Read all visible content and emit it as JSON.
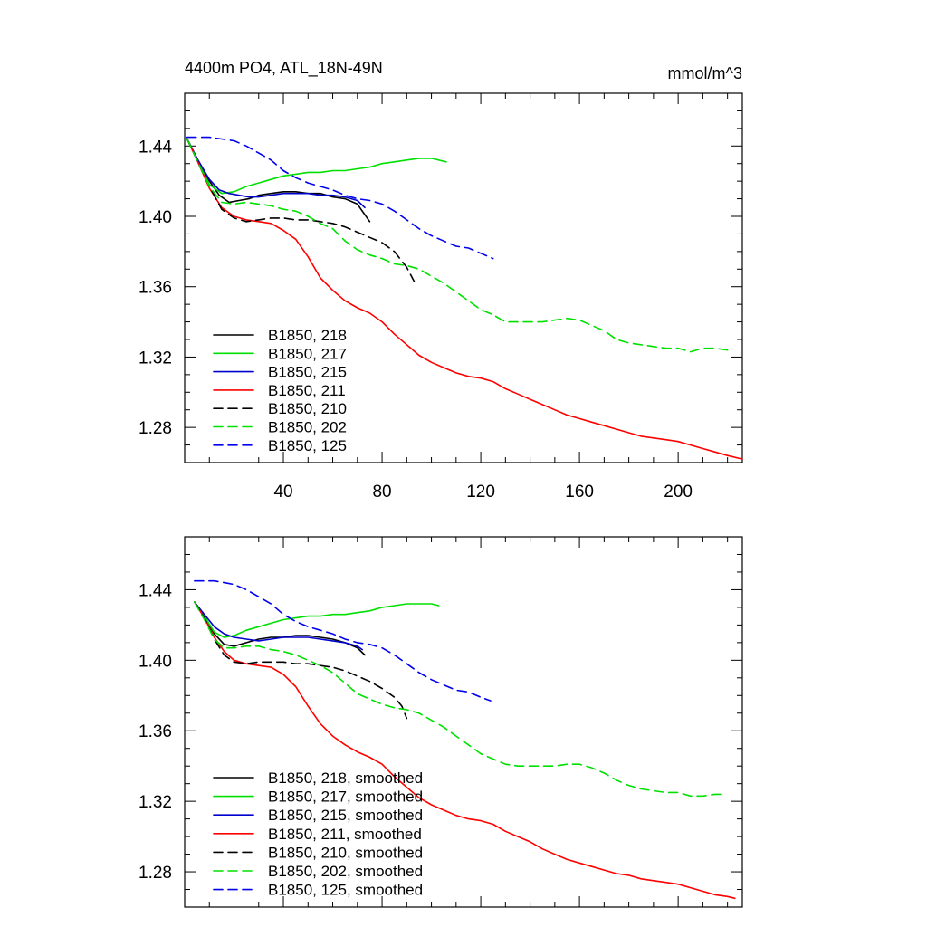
{
  "chart_data": [
    {
      "type": "line",
      "title": "4400m PO4, ATL_18N-49N",
      "units_label": "mmol/m^3",
      "xlim": [
        0,
        226
      ],
      "ylim": [
        1.26,
        1.47
      ],
      "xticks": [
        40,
        80,
        120,
        160,
        200
      ],
      "xtick_labels": [
        "40",
        "80",
        "120",
        "160",
        "200"
      ],
      "yticks": [
        1.28,
        1.32,
        1.36,
        1.4,
        1.44
      ],
      "ytick_labels": [
        "1.28",
        "1.32",
        "1.36",
        "1.40",
        "1.44"
      ],
      "legend_position": "bottom-left",
      "series": [
        {
          "name": "B1850, 218",
          "color": "#000000",
          "dash": "solid",
          "x": [
            1,
            5,
            10,
            14,
            18,
            22,
            26,
            30,
            35,
            40,
            45,
            50,
            55,
            60,
            65,
            70,
            72,
            75
          ],
          "y": [
            1.444,
            1.433,
            1.42,
            1.412,
            1.408,
            1.409,
            1.41,
            1.412,
            1.413,
            1.414,
            1.414,
            1.413,
            1.413,
            1.411,
            1.41,
            1.407,
            1.403,
            1.397
          ]
        },
        {
          "name": "B1850, 217",
          "color": "#00e000",
          "dash": "solid",
          "x": [
            1,
            5,
            10,
            15,
            20,
            25,
            30,
            35,
            40,
            45,
            50,
            55,
            60,
            65,
            70,
            75,
            80,
            85,
            90,
            95,
            100,
            106
          ],
          "y": [
            1.444,
            1.432,
            1.418,
            1.413,
            1.414,
            1.417,
            1.419,
            1.421,
            1.423,
            1.424,
            1.425,
            1.425,
            1.426,
            1.426,
            1.427,
            1.428,
            1.43,
            1.431,
            1.432,
            1.433,
            1.433,
            1.431
          ]
        },
        {
          "name": "B1850, 215",
          "color": "#0000cc",
          "dash": "solid",
          "x": [
            1,
            5,
            10,
            14,
            18,
            22,
            26,
            30,
            35,
            40,
            45,
            50,
            55,
            60,
            65,
            70,
            73
          ],
          "y": [
            1.444,
            1.433,
            1.421,
            1.415,
            1.413,
            1.412,
            1.411,
            1.411,
            1.412,
            1.413,
            1.413,
            1.413,
            1.412,
            1.412,
            1.411,
            1.409,
            1.405
          ]
        },
        {
          "name": "B1850, 211",
          "color": "#ff0000",
          "dash": "solid",
          "x": [
            1,
            5,
            10,
            15,
            20,
            25,
            30,
            35,
            40,
            45,
            50,
            55,
            60,
            65,
            70,
            75,
            80,
            85,
            90,
            95,
            100,
            105,
            110,
            115,
            120,
            125,
            130,
            135,
            140,
            145,
            150,
            155,
            160,
            165,
            170,
            175,
            180,
            185,
            190,
            195,
            200,
            205,
            210,
            215,
            220,
            226
          ],
          "y": [
            1.444,
            1.432,
            1.416,
            1.405,
            1.4,
            1.398,
            1.397,
            1.396,
            1.392,
            1.387,
            1.377,
            1.365,
            1.358,
            1.352,
            1.348,
            1.345,
            1.34,
            1.333,
            1.327,
            1.321,
            1.317,
            1.314,
            1.311,
            1.309,
            1.308,
            1.306,
            1.302,
            1.299,
            1.296,
            1.293,
            1.29,
            1.287,
            1.285,
            1.283,
            1.281,
            1.279,
            1.277,
            1.275,
            1.274,
            1.273,
            1.272,
            1.27,
            1.268,
            1.266,
            1.264,
            1.262
          ]
        },
        {
          "name": "B1850, 210",
          "color": "#000000",
          "dash": "dashed",
          "x": [
            1,
            5,
            10,
            15,
            20,
            25,
            30,
            35,
            40,
            45,
            50,
            55,
            60,
            65,
            70,
            75,
            80,
            85,
            90,
            93
          ],
          "y": [
            1.444,
            1.432,
            1.417,
            1.404,
            1.399,
            1.397,
            1.398,
            1.399,
            1.399,
            1.398,
            1.398,
            1.397,
            1.396,
            1.394,
            1.391,
            1.388,
            1.385,
            1.38,
            1.371,
            1.363
          ]
        },
        {
          "name": "B1850, 202",
          "color": "#00e000",
          "dash": "dashed",
          "x": [
            1,
            5,
            10,
            15,
            20,
            25,
            30,
            35,
            40,
            45,
            50,
            55,
            60,
            65,
            70,
            75,
            80,
            85,
            90,
            95,
            100,
            105,
            110,
            115,
            120,
            125,
            130,
            135,
            140,
            145,
            150,
            155,
            160,
            165,
            170,
            175,
            180,
            185,
            190,
            195,
            200,
            205,
            210,
            215,
            220
          ],
          "y": [
            1.444,
            1.432,
            1.417,
            1.408,
            1.407,
            1.408,
            1.407,
            1.406,
            1.404,
            1.403,
            1.4,
            1.396,
            1.393,
            1.386,
            1.381,
            1.378,
            1.376,
            1.373,
            1.372,
            1.37,
            1.366,
            1.362,
            1.357,
            1.352,
            1.347,
            1.344,
            1.34,
            1.34,
            1.34,
            1.34,
            1.341,
            1.342,
            1.341,
            1.338,
            1.335,
            1.33,
            1.328,
            1.327,
            1.326,
            1.325,
            1.325,
            1.323,
            1.325,
            1.325,
            1.324
          ]
        },
        {
          "name": "B1850, 125",
          "color": "#0000ee",
          "dash": "dashed",
          "x": [
            1,
            5,
            10,
            15,
            20,
            25,
            30,
            35,
            40,
            45,
            50,
            55,
            60,
            65,
            70,
            75,
            80,
            85,
            90,
            95,
            100,
            105,
            110,
            115,
            120,
            125
          ],
          "y": [
            1.445,
            1.445,
            1.445,
            1.444,
            1.443,
            1.44,
            1.436,
            1.432,
            1.426,
            1.422,
            1.419,
            1.417,
            1.415,
            1.412,
            1.41,
            1.409,
            1.407,
            1.403,
            1.398,
            1.393,
            1.389,
            1.386,
            1.383,
            1.382,
            1.379,
            1.376
          ]
        }
      ]
    },
    {
      "type": "line",
      "title": "",
      "xlim": [
        0,
        226
      ],
      "ylim": [
        1.26,
        1.47
      ],
      "xticks": [
        40,
        80,
        120,
        160,
        200
      ],
      "yticks": [
        1.28,
        1.32,
        1.36,
        1.4,
        1.44
      ],
      "ytick_labels": [
        "1.28",
        "1.32",
        "1.36",
        "1.40",
        "1.44"
      ],
      "legend_position": "bottom-left",
      "series": [
        {
          "name": "B1850, 218, smoothed",
          "color": "#000000",
          "dash": "solid",
          "x": [
            4,
            8,
            12,
            16,
            20,
            25,
            30,
            35,
            40,
            45,
            50,
            55,
            60,
            65,
            70,
            73
          ],
          "y": [
            1.433,
            1.425,
            1.415,
            1.409,
            1.408,
            1.41,
            1.412,
            1.413,
            1.413,
            1.414,
            1.414,
            1.413,
            1.412,
            1.41,
            1.407,
            1.403
          ]
        },
        {
          "name": "B1850, 217, smoothed",
          "color": "#00e000",
          "dash": "solid",
          "x": [
            4,
            8,
            12,
            16,
            20,
            25,
            30,
            35,
            40,
            45,
            50,
            55,
            60,
            65,
            70,
            75,
            80,
            85,
            90,
            95,
            100,
            103
          ],
          "y": [
            1.433,
            1.425,
            1.416,
            1.413,
            1.414,
            1.417,
            1.419,
            1.421,
            1.423,
            1.424,
            1.425,
            1.425,
            1.426,
            1.426,
            1.427,
            1.428,
            1.43,
            1.431,
            1.432,
            1.432,
            1.432,
            1.431
          ]
        },
        {
          "name": "B1850, 215, smoothed",
          "color": "#0000cc",
          "dash": "solid",
          "x": [
            4,
            8,
            12,
            16,
            20,
            25,
            30,
            35,
            40,
            45,
            50,
            55,
            60,
            65,
            70,
            72
          ],
          "y": [
            1.433,
            1.426,
            1.419,
            1.415,
            1.413,
            1.412,
            1.411,
            1.412,
            1.413,
            1.413,
            1.413,
            1.412,
            1.411,
            1.41,
            1.408,
            1.406
          ]
        },
        {
          "name": "B1850, 211, smoothed",
          "color": "#ff0000",
          "dash": "solid",
          "x": [
            4,
            8,
            12,
            16,
            20,
            25,
            30,
            35,
            40,
            45,
            50,
            55,
            60,
            65,
            70,
            75,
            80,
            85,
            90,
            95,
            100,
            105,
            110,
            115,
            120,
            125,
            130,
            135,
            140,
            145,
            150,
            155,
            160,
            165,
            170,
            175,
            180,
            185,
            190,
            195,
            200,
            205,
            210,
            215,
            220,
            223
          ],
          "y": [
            1.433,
            1.424,
            1.413,
            1.405,
            1.4,
            1.398,
            1.397,
            1.396,
            1.392,
            1.385,
            1.374,
            1.364,
            1.357,
            1.352,
            1.348,
            1.345,
            1.341,
            1.334,
            1.328,
            1.322,
            1.318,
            1.315,
            1.312,
            1.31,
            1.309,
            1.307,
            1.303,
            1.3,
            1.297,
            1.293,
            1.29,
            1.287,
            1.285,
            1.283,
            1.281,
            1.279,
            1.278,
            1.276,
            1.275,
            1.274,
            1.273,
            1.271,
            1.269,
            1.267,
            1.266,
            1.265
          ]
        },
        {
          "name": "B1850, 210, smoothed",
          "color": "#000000",
          "dash": "dashed",
          "x": [
            4,
            8,
            12,
            16,
            20,
            25,
            30,
            35,
            40,
            45,
            50,
            55,
            60,
            65,
            70,
            75,
            80,
            85,
            88,
            90
          ],
          "y": [
            1.433,
            1.424,
            1.412,
            1.403,
            1.399,
            1.398,
            1.399,
            1.399,
            1.399,
            1.398,
            1.398,
            1.397,
            1.396,
            1.394,
            1.391,
            1.388,
            1.384,
            1.379,
            1.374,
            1.367
          ]
        },
        {
          "name": "B1850, 202, smoothed",
          "color": "#00e000",
          "dash": "dashed",
          "x": [
            4,
            8,
            12,
            16,
            20,
            25,
            30,
            35,
            40,
            45,
            50,
            55,
            60,
            65,
            70,
            75,
            80,
            85,
            90,
            95,
            100,
            105,
            110,
            115,
            120,
            125,
            130,
            135,
            140,
            145,
            150,
            155,
            160,
            165,
            170,
            175,
            180,
            185,
            190,
            195,
            200,
            205,
            210,
            215,
            218
          ],
          "y": [
            1.433,
            1.423,
            1.412,
            1.407,
            1.407,
            1.408,
            1.408,
            1.406,
            1.405,
            1.403,
            1.4,
            1.397,
            1.393,
            1.387,
            1.381,
            1.378,
            1.375,
            1.373,
            1.372,
            1.37,
            1.366,
            1.362,
            1.357,
            1.352,
            1.347,
            1.344,
            1.341,
            1.34,
            1.34,
            1.34,
            1.34,
            1.341,
            1.341,
            1.339,
            1.336,
            1.332,
            1.329,
            1.327,
            1.326,
            1.325,
            1.325,
            1.323,
            1.323,
            1.324,
            1.324
          ]
        },
        {
          "name": "B1850, 125, smoothed",
          "color": "#0000ee",
          "dash": "dashed",
          "x": [
            4,
            8,
            12,
            16,
            20,
            25,
            30,
            35,
            40,
            45,
            50,
            55,
            60,
            65,
            70,
            75,
            80,
            85,
            90,
            95,
            100,
            105,
            110,
            115,
            120,
            124
          ],
          "y": [
            1.445,
            1.445,
            1.445,
            1.444,
            1.443,
            1.44,
            1.436,
            1.432,
            1.426,
            1.422,
            1.419,
            1.417,
            1.415,
            1.412,
            1.41,
            1.409,
            1.407,
            1.403,
            1.398,
            1.393,
            1.389,
            1.386,
            1.383,
            1.382,
            1.379,
            1.377
          ]
        }
      ]
    }
  ]
}
